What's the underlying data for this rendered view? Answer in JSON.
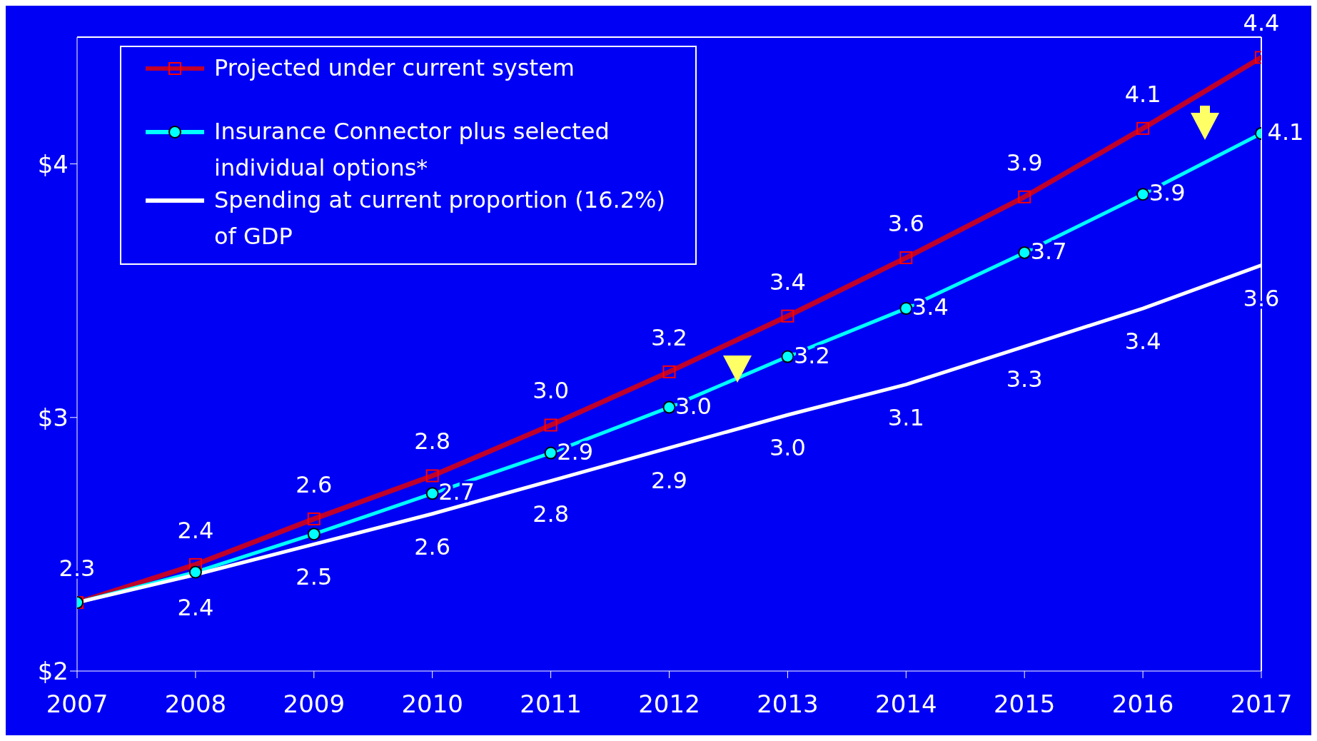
{
  "chart_data": {
    "type": "line",
    "x": [
      2007,
      2008,
      2009,
      2010,
      2011,
      2012,
      2013,
      2014,
      2015,
      2016,
      2017
    ],
    "xlim": [
      2007,
      2017
    ],
    "xticks": [
      2007,
      2008,
      2009,
      2010,
      2011,
      2012,
      2013,
      2014,
      2015,
      2016,
      2017
    ],
    "ylim": [
      2,
      4.5
    ],
    "yticks": [
      {
        "value": 2,
        "label": "$2"
      },
      {
        "value": 3,
        "label": "$3"
      },
      {
        "value": 4,
        "label": "$4"
      }
    ],
    "grid": false,
    "legend": "top left",
    "series": [
      {
        "name": "Projected under current system",
        "color": "#c0002a",
        "marker": "square",
        "values": [
          2.27,
          2.42,
          2.6,
          2.77,
          2.97,
          3.18,
          3.4,
          3.63,
          3.87,
          4.14,
          4.42
        ],
        "value_labels": [
          "2.3",
          "2.4",
          "2.6",
          "2.8",
          "3.0",
          "3.2",
          "3.4",
          "3.6",
          "3.9",
          "4.1",
          "4.4"
        ]
      },
      {
        "name": "Insurance Connector plus selected individual options*",
        "color": "#00ffff",
        "marker": "circle",
        "values": [
          2.27,
          2.39,
          2.54,
          2.7,
          2.86,
          3.04,
          3.24,
          3.43,
          3.65,
          3.88,
          4.12
        ],
        "value_labels": [
          null,
          null,
          null,
          "2.7",
          "2.9",
          "3.0",
          "3.2",
          "3.4",
          "3.7",
          "3.9",
          "4.1"
        ]
      },
      {
        "name": "Spending at current proportion (16.2%) of GDP",
        "color": "#ffffff",
        "marker": "none",
        "values": [
          2.27,
          2.38,
          2.5,
          2.62,
          2.75,
          2.88,
          3.01,
          3.13,
          3.28,
          3.43,
          3.6
        ],
        "value_labels": [
          null,
          "2.4",
          "2.5",
          "2.6",
          "2.8",
          "2.9",
          "3.0",
          "3.1",
          "3.3",
          "3.4",
          "3.6"
        ]
      }
    ]
  }
}
